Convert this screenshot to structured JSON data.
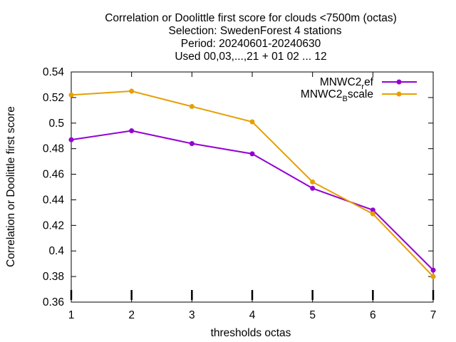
{
  "chart_data": {
    "type": "line",
    "title_lines": [
      "Correlation or Doolittle first score  for clouds <7500m (octas)",
      "Selection: SwedenForest      4 stations",
      "Period: 20240601-20240630",
      "Used 00,03,...,21 + 01 02 ... 12"
    ],
    "xlabel": "thresholds octas",
    "ylabel": "Correlation or Doolittle first score",
    "x": [
      1,
      2,
      3,
      4,
      5,
      6,
      7
    ],
    "xlim": [
      1,
      7
    ],
    "ylim": [
      0.36,
      0.54
    ],
    "xticks": [
      "1",
      "2",
      "3",
      "4",
      "5",
      "6",
      "7"
    ],
    "yticks": [
      "0.36",
      "0.38",
      "0.4",
      "0.42",
      "0.44",
      "0.46",
      "0.48",
      "0.5",
      "0.52",
      "0.54"
    ],
    "grid": false,
    "legend_position": "top-right",
    "series": [
      {
        "name_base": "MNWC2",
        "name_sub": "r",
        "name_rest": "ef",
        "color": "#9400d3",
        "values": [
          0.487,
          0.494,
          0.484,
          0.476,
          0.449,
          0.432,
          0.385
        ]
      },
      {
        "name_base": "MNWC2",
        "name_sub": "B",
        "name_rest": "scale",
        "color": "#e69f00",
        "values": [
          0.522,
          0.525,
          0.513,
          0.501,
          0.454,
          0.429,
          0.38
        ]
      }
    ]
  }
}
